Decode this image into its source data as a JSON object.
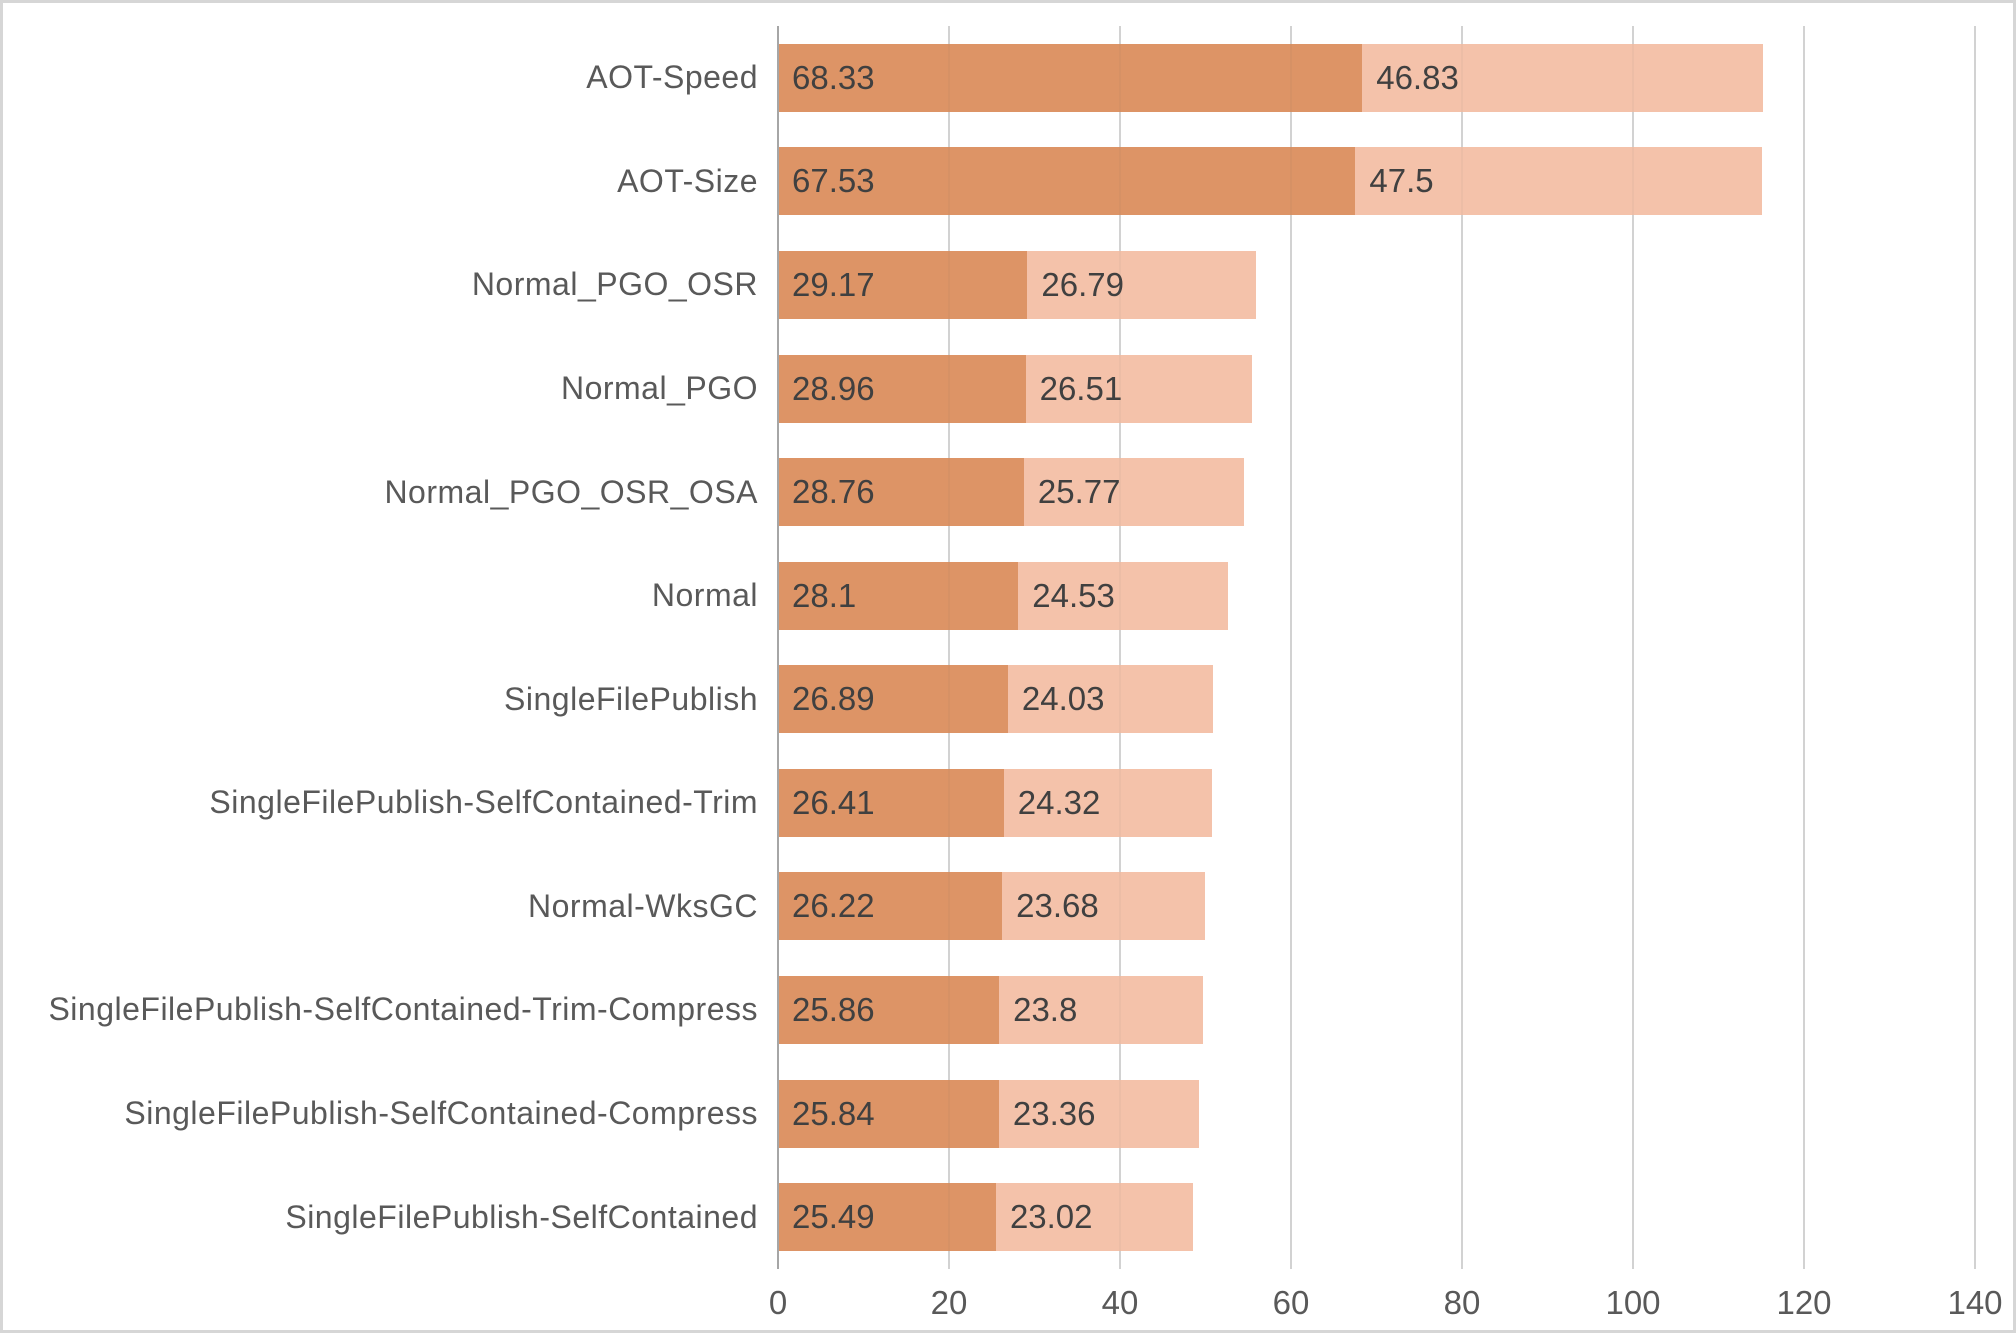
{
  "chart_data": {
    "type": "bar",
    "orientation": "horizontal",
    "stacked": true,
    "title": "",
    "legend": "none",
    "grid": true,
    "data_labels_position": "inside-base",
    "categories": [
      "AOT-Speed",
      "AOT-Size",
      "Normal_PGO_OSR",
      "Normal_PGO",
      "Normal_PGO_OSR_OSA",
      "Normal",
      "SingleFilePublish",
      "SingleFilePublish-SelfContained-Trim",
      "Normal-WksGC",
      "SingleFilePublish-SelfContained-Trim-Compress",
      "SingleFilePublish-SelfContained-Compress",
      "SingleFilePublish-SelfContained"
    ],
    "series": [
      {
        "color": "#DD9466",
        "values": [
          68.33,
          67.53,
          29.17,
          28.96,
          28.76,
          28.1,
          26.89,
          26.41,
          26.22,
          25.86,
          25.84,
          25.49
        ],
        "labels": [
          "68.33",
          "67.53",
          "29.17",
          "28.96",
          "28.76",
          "28.1",
          "26.89",
          "26.41",
          "26.22",
          "25.86",
          "25.84",
          "25.49"
        ]
      },
      {
        "color": "#F4C2AA",
        "values": [
          46.83,
          47.5,
          26.79,
          26.51,
          25.77,
          24.53,
          24.03,
          24.32,
          23.68,
          23.8,
          23.36,
          23.02
        ],
        "labels": [
          "46.83",
          "47.5",
          "26.79",
          "26.51",
          "25.77",
          "24.53",
          "24.03",
          "24.32",
          "23.68",
          "23.8",
          "23.36",
          "23.02"
        ]
      }
    ],
    "x_axis": {
      "ticks": [
        "0",
        "20",
        "40",
        "60",
        "80",
        "100",
        "120",
        "140"
      ],
      "min": 0,
      "max": 140
    }
  },
  "style": {
    "series1_color": "#DD9466",
    "series2_color": "#F4C2AA",
    "data_label_color": "#404040",
    "axis_label_color": "#595959",
    "gridline_color": "#D9D9D9",
    "axis_line_color": "#A6A6A6",
    "border_color": "#D6D6D6",
    "background": "#FFFFFF"
  }
}
